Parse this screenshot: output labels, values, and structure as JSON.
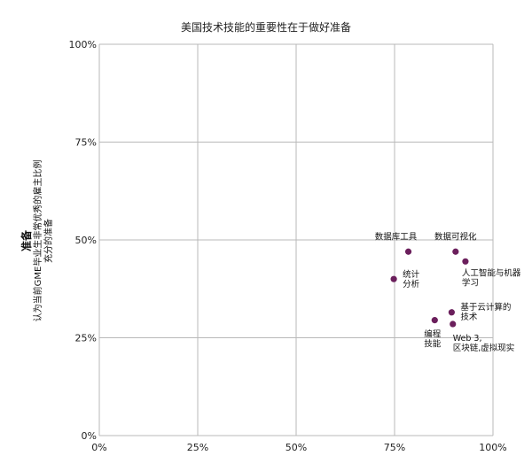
{
  "chart_data": {
    "type": "scatter",
    "title": "美国技术技能的重要性在于做好准备",
    "ylabel_main": "准备",
    "ylabel_line1": "认为当前GME毕业生非常优秀的雇主比例",
    "ylabel_line2": "充分的准备",
    "xlabel": "",
    "xlim": [
      0,
      100
    ],
    "ylim": [
      0,
      100
    ],
    "x_ticks": [
      "0%",
      "25%",
      "50%",
      "75%",
      "100%"
    ],
    "y_ticks": [
      "0%",
      "25%",
      "50%",
      "75%",
      "100%"
    ],
    "grid": true,
    "marker_color": "#6b1f5c",
    "points": [
      {
        "label_lines": [
          "数据库工具"
        ],
        "x": 78.5,
        "y": 47.0
      },
      {
        "label_lines": [
          "数据可视化"
        ],
        "x": 90.5,
        "y": 47.0
      },
      {
        "label_lines": [
          "统计",
          "分析"
        ],
        "x": 74.8,
        "y": 40.0
      },
      {
        "label_lines": [
          "人工智能与机器",
          "学习"
        ],
        "x": 93.0,
        "y": 44.5
      },
      {
        "label_lines": [
          "基于云计算的",
          "技术"
        ],
        "x": 89.5,
        "y": 31.5
      },
      {
        "label_lines": [
          "编程",
          "技能"
        ],
        "x": 85.2,
        "y": 29.5
      },
      {
        "label_lines": [
          "Web 3,",
          "区块链,虚拟现实"
        ],
        "x": 89.8,
        "y": 28.5
      }
    ]
  }
}
